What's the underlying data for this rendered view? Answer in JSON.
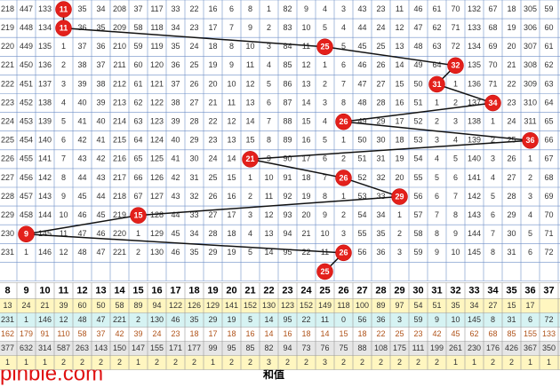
{
  "top": {
    "rows": [
      {
        "period": 218,
        "cells": [
          447,
          133,
          {
            "ball": 11
          },
          35,
          34,
          208,
          37,
          117,
          33,
          22,
          16,
          6,
          8,
          1,
          82,
          9,
          4,
          3,
          43,
          23,
          11,
          46,
          61,
          70,
          132,
          67,
          18,
          305,
          59
        ]
      },
      {
        "period": 219,
        "cells": [
          448,
          134,
          {
            "ball": 11
          },
          36,
          35,
          209,
          58,
          118,
          34,
          23,
          17,
          7,
          9,
          2,
          83,
          10,
          5,
          4,
          44,
          24,
          12,
          47,
          62,
          71,
          133,
          68,
          19,
          306,
          60
        ]
      },
      {
        "period": 220,
        "cells": [
          449,
          135,
          1,
          37,
          36,
          210,
          59,
          119,
          35,
          24,
          18,
          8,
          10,
          3,
          84,
          11,
          {
            "ball": 25
          },
          5,
          45,
          25,
          13,
          48,
          63,
          72,
          134,
          69,
          20,
          307,
          61
        ]
      },
      {
        "period": 221,
        "cells": [
          450,
          136,
          2,
          38,
          37,
          211,
          60,
          120,
          36,
          25,
          19,
          9,
          11,
          4,
          85,
          12,
          1,
          6,
          46,
          26,
          14,
          49,
          64,
          {
            "ball": 32
          },
          135,
          70,
          21,
          308,
          62
        ]
      },
      {
        "period": 222,
        "cells": [
          451,
          137,
          3,
          39,
          38,
          212,
          61,
          121,
          37,
          26,
          20,
          10,
          12,
          5,
          86,
          13,
          2,
          7,
          47,
          27,
          15,
          50,
          {
            "ball": 31
          },
          1,
          136,
          71,
          22,
          309,
          63
        ]
      },
      {
        "period": 223,
        "cells": [
          452,
          138,
          4,
          40,
          39,
          213,
          62,
          122,
          38,
          27,
          21,
          11,
          13,
          6,
          87,
          14,
          3,
          8,
          48,
          28,
          16,
          51,
          1,
          2,
          137,
          {
            "ball": 34
          },
          23,
          310,
          64
        ]
      },
      {
        "period": 224,
        "cells": [
          453,
          139,
          5,
          41,
          40,
          214,
          63,
          123,
          39,
          28,
          22,
          12,
          14,
          7,
          88,
          15,
          4,
          {
            "ball": 26
          },
          49,
          29,
          17,
          52,
          2,
          3,
          138,
          1,
          24,
          311,
          65
        ]
      },
      {
        "period": 225,
        "cells": [
          454,
          140,
          6,
          42,
          41,
          215,
          64,
          124,
          40,
          29,
          23,
          13,
          15,
          8,
          89,
          16,
          5,
          1,
          50,
          30,
          18,
          53,
          3,
          4,
          139,
          2,
          25,
          {
            "ball": 36
          },
          66
        ]
      },
      {
        "period": 226,
        "cells": [
          455,
          141,
          7,
          43,
          42,
          216,
          65,
          125,
          41,
          30,
          24,
          14,
          {
            "ball": 21
          },
          9,
          90,
          17,
          6,
          2,
          51,
          31,
          19,
          54,
          4,
          5,
          140,
          3,
          26,
          1,
          67
        ]
      },
      {
        "period": 227,
        "cells": [
          456,
          142,
          8,
          44,
          43,
          217,
          66,
          126,
          42,
          31,
          25,
          15,
          1,
          10,
          91,
          18,
          7,
          {
            "ball": 26
          },
          52,
          32,
          20,
          55,
          5,
          6,
          141,
          4,
          27,
          2,
          68
        ]
      },
      {
        "period": 228,
        "cells": [
          457,
          143,
          9,
          45,
          44,
          218,
          67,
          127,
          43,
          32,
          26,
          16,
          2,
          11,
          92,
          19,
          8,
          1,
          53,
          33,
          {
            "ball": 29
          },
          56,
          6,
          7,
          142,
          5,
          28,
          3,
          69
        ]
      },
      {
        "period": 229,
        "cells": [
          458,
          144,
          10,
          46,
          45,
          219,
          {
            "ball": 15
          },
          128,
          44,
          33,
          27,
          17,
          3,
          12,
          93,
          20,
          9,
          2,
          54,
          34,
          1,
          57,
          7,
          8,
          143,
          6,
          29,
          4,
          70
        ]
      },
      {
        "period": 230,
        "cells": [
          {
            "ball": 9
          },
          145,
          11,
          47,
          46,
          220,
          1,
          129,
          45,
          34,
          28,
          18,
          4,
          13,
          94,
          21,
          10,
          3,
          55,
          35,
          2,
          58,
          8,
          9,
          144,
          7,
          30,
          5,
          71
        ]
      },
      {
        "period": 231,
        "cells": [
          1,
          146,
          12,
          48,
          47,
          221,
          2,
          130,
          46,
          35,
          29,
          19,
          5,
          14,
          95,
          22,
          11,
          {
            "ball": 26
          },
          56,
          36,
          3,
          59,
          9,
          10,
          145,
          8,
          31,
          6,
          72
        ]
      },
      {
        "cells": [
          null,
          null,
          null,
          null,
          null,
          null,
          null,
          null,
          null,
          null,
          null,
          null,
          null,
          null,
          null,
          null,
          {
            "ball": 25
          },
          null,
          null,
          null,
          null,
          null,
          null,
          null,
          null,
          null,
          null,
          null,
          null
        ]
      }
    ]
  },
  "stats": {
    "header": [
      8,
      9,
      10,
      11,
      12,
      13,
      14,
      15,
      16,
      17,
      18,
      19,
      20,
      21,
      22,
      23,
      24,
      25,
      26,
      27,
      28,
      29,
      30,
      31,
      32,
      33,
      34,
      35,
      36,
      37
    ],
    "rows": [
      [
        13,
        24,
        21,
        39,
        60,
        50,
        58,
        89,
        94,
        122,
        126,
        129,
        141,
        152,
        130,
        123,
        152,
        149,
        118,
        100,
        89,
        97,
        54,
        51,
        35,
        34,
        27,
        15,
        17,
        null
      ],
      [
        231,
        1,
        146,
        12,
        48,
        47,
        221,
        2,
        130,
        46,
        35,
        29,
        19,
        5,
        14,
        95,
        22,
        11,
        0,
        56,
        36,
        3,
        59,
        9,
        10,
        145,
        8,
        31,
        6,
        72
      ],
      [
        162,
        179,
        91,
        110,
        58,
        37,
        42,
        39,
        24,
        23,
        18,
        17,
        18,
        16,
        14,
        16,
        18,
        14,
        15,
        18,
        22,
        25,
        23,
        42,
        45,
        62,
        68,
        85,
        155,
        133
      ],
      [
        377,
        632,
        314,
        587,
        263,
        143,
        150,
        147,
        155,
        171,
        177,
        99,
        95,
        85,
        82,
        94,
        73,
        76,
        75,
        88,
        108,
        175,
        111,
        199,
        261,
        230,
        176,
        426,
        367,
        350
      ],
      [
        1,
        1,
        1,
        2,
        2,
        2,
        2,
        1,
        2,
        2,
        2,
        1,
        2,
        2,
        3,
        2,
        2,
        3,
        2,
        2,
        2,
        2,
        2,
        2,
        1,
        1,
        2,
        2,
        1,
        1
      ]
    ]
  },
  "footer": {
    "label": "和值",
    "watermark": "pinble.com"
  }
}
